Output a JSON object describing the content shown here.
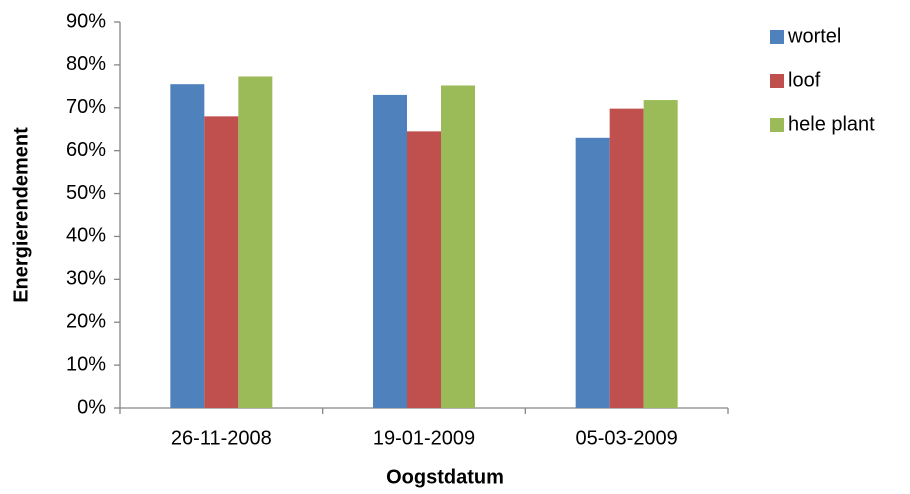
{
  "chart_data": {
    "type": "bar",
    "x_label": "Oogstdatum",
    "y_label": "Energierendement",
    "categories": [
      "26-11-2008",
      "19-01-2009",
      "05-03-2009"
    ],
    "series": [
      {
        "name": "wortel",
        "color": "#4f81bd",
        "values": [
          75.5,
          73,
          63
        ]
      },
      {
        "name": "loof",
        "color": "#c0504d",
        "values": [
          68,
          64.5,
          69.8
        ]
      },
      {
        "name": "hele plant",
        "color": "#9bbb59",
        "values": [
          77.3,
          75.2,
          71.8
        ]
      }
    ],
    "ylim": [
      0,
      90
    ],
    "yticks": [
      {
        "value": 0,
        "label": "0%"
      },
      {
        "value": 10,
        "label": "10%"
      },
      {
        "value": 20,
        "label": "20%"
      },
      {
        "value": 30,
        "label": "30%"
      },
      {
        "value": 40,
        "label": "40%"
      },
      {
        "value": 50,
        "label": "50%"
      },
      {
        "value": 60,
        "label": "60%"
      },
      {
        "value": 70,
        "label": "70%"
      },
      {
        "value": 80,
        "label": "80%"
      },
      {
        "value": 90,
        "label": "90%"
      }
    ],
    "grid": false,
    "legend": "right"
  }
}
